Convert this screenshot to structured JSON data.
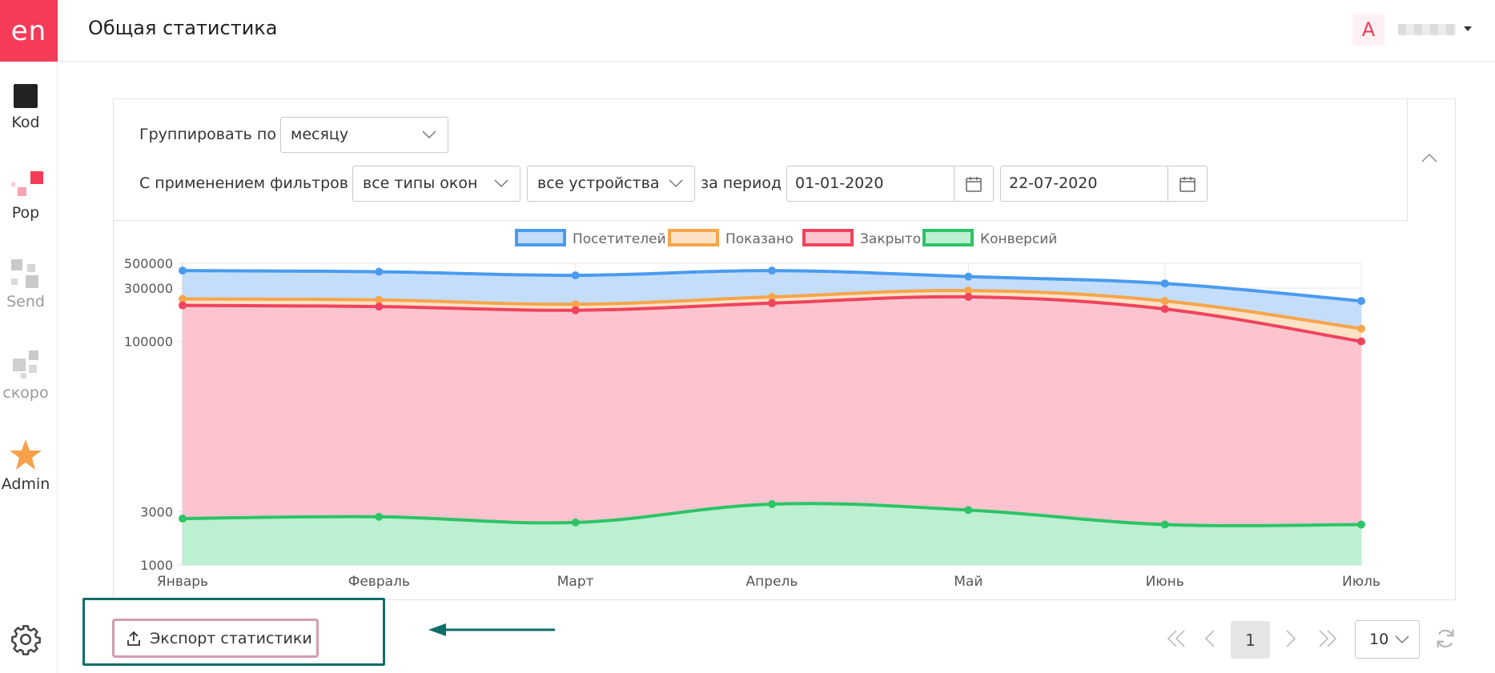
{
  "app": {
    "logo_text": "en",
    "page_title": "Общая статистика",
    "user_initial": "A"
  },
  "sidebar": {
    "items": [
      {
        "label": "Kod",
        "icon": "black-square-icon"
      },
      {
        "label": "Pop",
        "icon": "pop-squares-icon"
      },
      {
        "label": "Send",
        "icon": "send-squares-icon"
      },
      {
        "label": "скоро",
        "icon": "soon-squares-icon"
      },
      {
        "label": "Admin",
        "icon": "star-icon"
      }
    ],
    "settings_icon": "gear-icon"
  },
  "filters": {
    "group_label": "Группировать по",
    "group_value": "месяцу",
    "filter_label": "С применением фильтров",
    "window_type_value": "все типы окон",
    "device_value": "все устройства",
    "period_label": "за период",
    "date_from": "01-01-2020",
    "date_to": "22-07-2020"
  },
  "chart_data": {
    "type": "area",
    "categories": [
      "Январь",
      "Февраль",
      "Март",
      "Апрель",
      "Май",
      "Июнь",
      "Июль"
    ],
    "y_scale": "log",
    "ylim": [
      1000,
      500000
    ],
    "y_ticks": [
      "500000",
      "300000",
      "100000",
      "3000",
      "1000"
    ],
    "grid": true,
    "legend_position": "top",
    "series": [
      {
        "name": "Посетителей",
        "color": "#4a9bef",
        "fill": "#c3ddfa",
        "values": [
          430000,
          420000,
          390000,
          430000,
          380000,
          330000,
          230000
        ]
      },
      {
        "name": "Показано",
        "color": "#f7a54a",
        "fill": "#fde2c6",
        "values": [
          240000,
          235000,
          215000,
          250000,
          285000,
          230000,
          130000
        ]
      },
      {
        "name": "Закрыто",
        "color": "#f0435d",
        "fill": "#fcc4cf",
        "values": [
          210000,
          205000,
          190000,
          220000,
          250000,
          195000,
          100000
        ]
      },
      {
        "name": "Конверсий",
        "color": "#2cc467",
        "fill": "#bdefd1",
        "values": [
          2600,
          2700,
          2400,
          3500,
          3100,
          2300,
          2300
        ]
      }
    ]
  },
  "footer": {
    "export_label": "Экспорт статистики",
    "current_page": "1",
    "per_page": "10"
  }
}
